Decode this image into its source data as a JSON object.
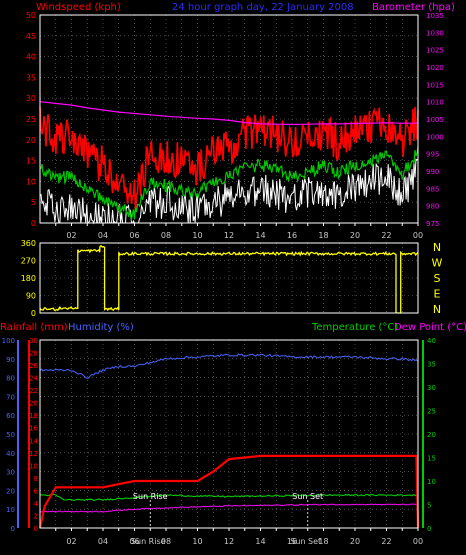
{
  "colors": {
    "background": "#000000",
    "axis": "#ffffff",
    "grid": "#7a7a7a",
    "windspeed": "#ff0000",
    "windgust": "#ffffff",
    "windavg": "#00c800",
    "winddir": "#ffff00",
    "barometer": "#ff00ff",
    "title": "#2b2bff",
    "rainfall": "#ff0000",
    "humidity": "#4a63ff",
    "temperature": "#00cc00",
    "dewpoint": "#ff00ff",
    "sun_marker": "#ffffff",
    "tick_label": "#c8c8c8"
  },
  "chart_data": [
    {
      "type": "line",
      "panel": "wind-barometer",
      "title": "24 hour graph day, 22 January 2008",
      "ylabel_left": "Windspeed (kph)",
      "ylabel_right": "Barometer (hpa)",
      "ylim_left": [
        0,
        50
      ],
      "ylim_right": [
        975,
        1035
      ],
      "yticks_left": [
        0,
        5,
        10,
        15,
        20,
        25,
        30,
        35,
        40,
        45,
        50
      ],
      "yticks_right": [
        975,
        980,
        985,
        990,
        995,
        1000,
        1005,
        1010,
        1015,
        1020,
        1025,
        1030,
        1035
      ],
      "x_hours": [
        0,
        1,
        2,
        3,
        4,
        5,
        6,
        7,
        8,
        9,
        10,
        11,
        12,
        13,
        14,
        15,
        16,
        17,
        18,
        19,
        20,
        21,
        22,
        23,
        24
      ],
      "xtick_labels": [
        "02",
        "04",
        "06",
        "08",
        "10",
        "12",
        "14",
        "16",
        "18",
        "20",
        "22",
        "00"
      ],
      "series": [
        {
          "key": "gust",
          "values": [
            24,
            20,
            21,
            16,
            14,
            10,
            6,
            17,
            16,
            15,
            13,
            17,
            18,
            21,
            23,
            21,
            19,
            20,
            22,
            19,
            22,
            23,
            24,
            20,
            25
          ]
        },
        {
          "key": "avg",
          "values": [
            13,
            11,
            11,
            8,
            6,
            4,
            2,
            10,
            9,
            8,
            7,
            10,
            11,
            13,
            14,
            13,
            11,
            12,
            14,
            12,
            14,
            15,
            16,
            12,
            17
          ]
        },
        {
          "key": "low",
          "values": [
            6,
            3,
            3,
            2,
            1,
            1,
            0,
            5,
            5,
            4,
            3,
            5,
            6,
            7,
            8,
            7,
            6,
            7,
            8,
            6,
            9,
            10,
            11,
            7,
            12
          ]
        },
        {
          "key": "baro",
          "values": [
            1010,
            1009.5,
            1009,
            1008.2,
            1007.6,
            1007,
            1006.6,
            1006.2,
            1005.8,
            1005.5,
            1005.2,
            1005,
            1004.6,
            1004,
            1003.6,
            1003.5,
            1003.4,
            1003.5,
            1003.6,
            1003.6,
            1003.7,
            1003.8,
            1003.9,
            1003.8,
            1003.8
          ]
        }
      ]
    },
    {
      "type": "scatter",
      "panel": "wind-direction",
      "ylim": [
        0,
        360
      ],
      "yticks": [
        0,
        90,
        180,
        270,
        360
      ],
      "compass_labels": [
        "N",
        "W",
        "S",
        "E",
        "N"
      ],
      "xtick_labels": [
        "02",
        "04",
        "06",
        "08",
        "10",
        "12",
        "14",
        "16",
        "18",
        "20",
        "22",
        "00"
      ],
      "segments": [
        {
          "from_hour": 0.0,
          "to_hour": 1.2,
          "dir": 20
        },
        {
          "from_hour": 1.2,
          "to_hour": 2.4,
          "dir": 25
        },
        {
          "from_hour": 2.4,
          "to_hour": 3.8,
          "dir": 320
        },
        {
          "from_hour": 3.8,
          "to_hour": 4.1,
          "dir": 340
        },
        {
          "from_hour": 4.1,
          "to_hour": 5.0,
          "dir": 20
        },
        {
          "from_hour": 5.0,
          "to_hour": 22.6,
          "dir": 305
        },
        {
          "from_hour": 22.6,
          "to_hour": 22.9,
          "dir": 0
        },
        {
          "from_hour": 22.9,
          "to_hour": 24.0,
          "dir": 305
        }
      ]
    },
    {
      "type": "line",
      "panel": "rain-humidity-temperature",
      "ylabel_rain": "Rainfall (mm)",
      "ylabel_humidity": "Humidity (%)",
      "ylabel_temperature": "Temperature (°C)",
      "ylabel_dewpoint": "Dew Point (°C)",
      "ylim_humidity": [
        0,
        100
      ],
      "ylim_rain": [
        0,
        30
      ],
      "ylim_temp": [
        0,
        40
      ],
      "yticks_humidity": [
        0,
        10,
        20,
        30,
        40,
        50,
        60,
        70,
        80,
        90,
        100
      ],
      "yticks_rain": [
        0,
        2,
        4,
        6,
        8,
        10,
        12,
        14,
        16,
        18,
        20,
        22,
        24,
        26,
        28,
        30
      ],
      "yticks_temp": [
        0,
        5,
        10,
        15,
        20,
        25,
        30,
        35,
        40
      ],
      "xtick_labels": [
        "02",
        "04",
        "06",
        "08",
        "10",
        "12",
        "14",
        "16",
        "18",
        "20",
        "22",
        "00"
      ],
      "sun_labels": {
        "rise": "Sun Rise",
        "set": "Sun Set",
        "rise_tick": "Sun Rise",
        "set_tick": "Sun Set"
      },
      "sun_hours": {
        "rise": 7.0,
        "set": 17.0
      },
      "series": [
        {
          "key": "humidity",
          "x": [
            0,
            1,
            2,
            3,
            4,
            5,
            6,
            7,
            8,
            10,
            12,
            14,
            16,
            18,
            20,
            22,
            23,
            24
          ],
          "values": [
            84,
            84,
            84,
            80,
            84,
            86,
            86,
            88,
            90,
            91,
            92,
            92,
            91,
            91,
            91,
            90,
            90,
            89
          ]
        },
        {
          "key": "temperature",
          "x": [
            0,
            0.5,
            1,
            1.5,
            2,
            4,
            6,
            8,
            10,
            12,
            14,
            16,
            18,
            20,
            22,
            24
          ],
          "values": [
            7,
            7,
            7,
            6,
            6,
            6,
            6.5,
            7,
            6.8,
            6.7,
            6.8,
            6.9,
            7,
            7,
            7,
            7
          ]
        },
        {
          "key": "dewpoint",
          "x": [
            0,
            2,
            4,
            6,
            8,
            10,
            12,
            14,
            16,
            18,
            20,
            22,
            24
          ],
          "values": [
            3.5,
            3.5,
            3.5,
            4,
            4.3,
            4.5,
            4.7,
            4.8,
            4.9,
            5,
            5,
            5,
            5
          ]
        },
        {
          "key": "rain",
          "x": [
            0,
            0.3,
            1,
            2,
            3,
            4,
            5,
            6,
            8,
            10,
            11,
            12,
            14,
            16,
            18,
            20,
            22,
            23.9,
            24
          ],
          "values": [
            0,
            3.5,
            6.5,
            6.5,
            6.5,
            6.5,
            7,
            7.5,
            7.5,
            7.5,
            9,
            11,
            11.5,
            11.5,
            11.5,
            11.5,
            11.5,
            11.5,
            0
          ]
        }
      ]
    }
  ]
}
